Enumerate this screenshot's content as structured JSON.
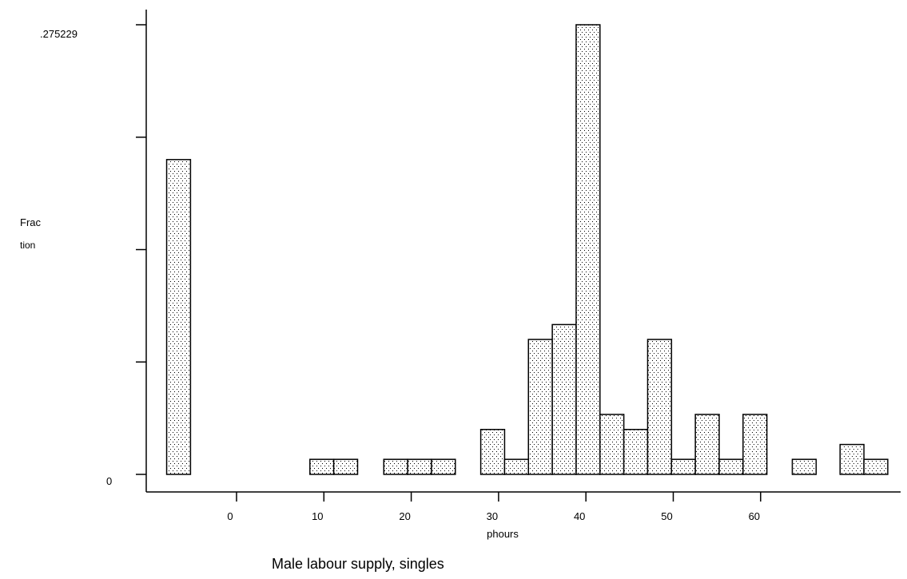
{
  "chart_data": {
    "type": "bar",
    "title": "",
    "caption": "Male labour supply, singles",
    "xlabel": "phours",
    "ylabel_lines": [
      "Frac",
      "tion"
    ],
    "ylim": [
      0,
      0.275229
    ],
    "ytick_labels": [
      ".275229",
      "0"
    ],
    "ytick_values": [
      0,
      0.0688,
      0.1376,
      0.2064,
      0.275229
    ],
    "xlim": [
      -10,
      75
    ],
    "xticks": [
      0,
      10,
      20,
      30,
      40,
      50,
      60
    ],
    "xtick_labels": [
      "0",
      "10",
      "20",
      "30",
      "40",
      "50",
      "60"
    ],
    "grid": false,
    "pattern": "dotted",
    "bars": [
      {
        "x0": -8,
        "x1": -5.27,
        "value": 0.1927
      },
      {
        "x0": 8.4,
        "x1": 11.13,
        "value": 0.0092
      },
      {
        "x0": 11.13,
        "x1": 13.86,
        "value": 0.0092
      },
      {
        "x0": 16.86,
        "x1": 19.59,
        "value": 0.0092
      },
      {
        "x0": 19.59,
        "x1": 22.32,
        "value": 0.0092
      },
      {
        "x0": 22.32,
        "x1": 25.05,
        "value": 0.0092
      },
      {
        "x0": 27.96,
        "x1": 30.69,
        "value": 0.0275
      },
      {
        "x0": 30.69,
        "x1": 33.42,
        "value": 0.0092
      },
      {
        "x0": 33.42,
        "x1": 36.15,
        "value": 0.0826
      },
      {
        "x0": 36.15,
        "x1": 38.88,
        "value": 0.0917
      },
      {
        "x0": 38.88,
        "x1": 41.61,
        "value": 0.275229
      },
      {
        "x0": 41.61,
        "x1": 44.34,
        "value": 0.0367
      },
      {
        "x0": 44.34,
        "x1": 47.07,
        "value": 0.0275
      },
      {
        "x0": 47.07,
        "x1": 49.8,
        "value": 0.0826
      },
      {
        "x0": 49.8,
        "x1": 52.53,
        "value": 0.0092
      },
      {
        "x0": 52.53,
        "x1": 55.26,
        "value": 0.0367
      },
      {
        "x0": 55.26,
        "x1": 57.99,
        "value": 0.0092
      },
      {
        "x0": 57.99,
        "x1": 60.72,
        "value": 0.0367
      },
      {
        "x0": 63.63,
        "x1": 66.36,
        "value": 0.0092
      },
      {
        "x0": 69.1,
        "x1": 71.83,
        "value": 0.0183
      },
      {
        "x0": 71.83,
        "x1": 74.56,
        "value": 0.0092
      }
    ]
  }
}
